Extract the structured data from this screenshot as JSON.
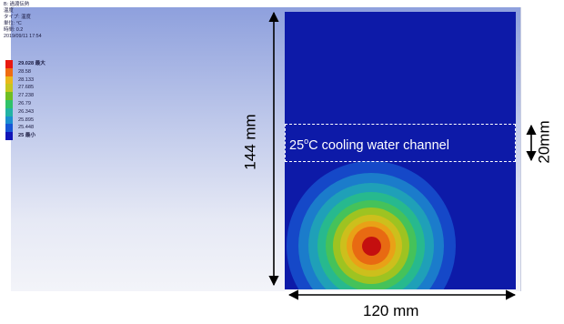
{
  "legend": {
    "title": "B: 過渡伝熱",
    "type_line": "温度",
    "type_label": "タイプ: 温度",
    "unit": "単位: °C",
    "time": "時間: 0.2",
    "date": "2019/09/11 17:54",
    "levels": [
      {
        "label": "29.028 最大",
        "color": "#e8180f",
        "bold": true
      },
      {
        "label": "28.58",
        "color": "#ef6c11",
        "bold": false
      },
      {
        "label": "28.133",
        "color": "#e9b81a",
        "bold": false
      },
      {
        "label": "27.685",
        "color": "#c6c61f",
        "bold": false
      },
      {
        "label": "27.238",
        "color": "#6fbe22",
        "bold": false
      },
      {
        "label": "26.79",
        "color": "#2fc26a",
        "bold": false
      },
      {
        "label": "26.343",
        "color": "#22b3a4",
        "bold": false
      },
      {
        "label": "25.895",
        "color": "#1b8fcf",
        "bold": false
      },
      {
        "label": "25.448",
        "color": "#1656d6",
        "bold": false
      },
      {
        "label": "25 最小",
        "color": "#1014b8",
        "bold": true
      }
    ]
  },
  "channel": {
    "label_prefix": "25",
    "label_degree": "o",
    "label_suffix": "C cooling water channel"
  },
  "dimensions": {
    "height": "144 mm",
    "width": "120 mm",
    "channel": "20mm"
  },
  "colors": {
    "domain_bg": "#0d1aa8",
    "hotspot": "#c40f0f"
  }
}
